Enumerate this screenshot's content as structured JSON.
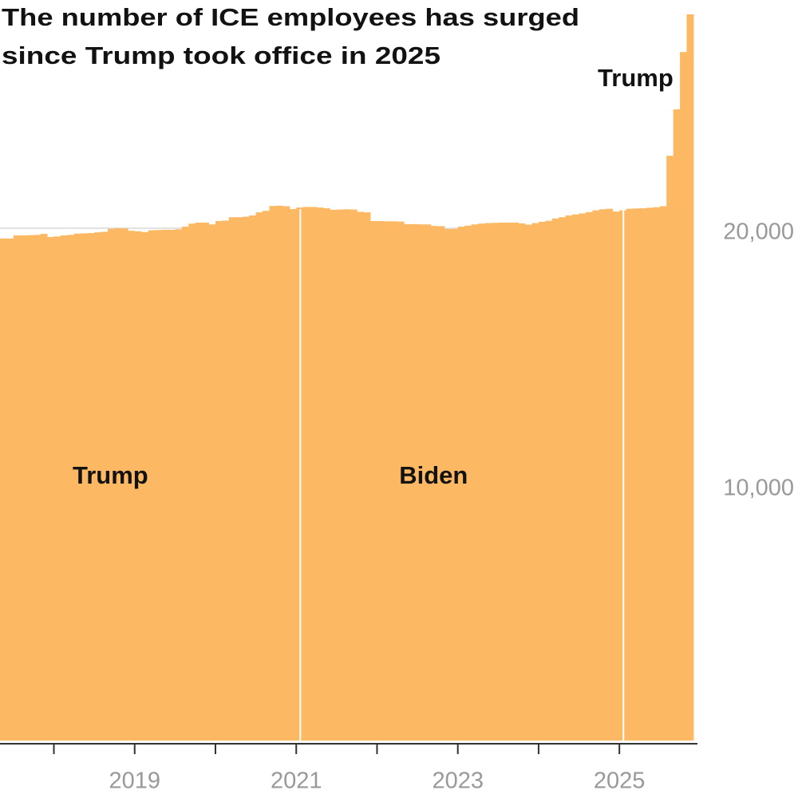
{
  "chart_data": {
    "type": "bar",
    "title": [
      "The number of ICE employees has surged",
      "since Trump took office in 2025"
    ],
    "annotations": [
      {
        "text": "Trump",
        "x": 2018.7
      },
      {
        "text": "Biden",
        "x": 2022.7
      },
      {
        "text": "Trump",
        "x": 2025.2
      }
    ],
    "dividers": [
      2021.05,
      2025.05
    ],
    "color": "#fdb863",
    "x": [
      2017.333,
      2017.417,
      2017.5,
      2017.583,
      2017.667,
      2017.75,
      2017.833,
      2017.917,
      2018,
      2018.083,
      2018.167,
      2018.25,
      2018.333,
      2018.417,
      2018.5,
      2018.583,
      2018.667,
      2018.75,
      2018.833,
      2018.917,
      2019,
      2019.083,
      2019.167,
      2019.25,
      2019.333,
      2019.417,
      2019.5,
      2019.583,
      2019.667,
      2019.75,
      2019.833,
      2019.917,
      2020,
      2020.083,
      2020.167,
      2020.25,
      2020.333,
      2020.417,
      2020.5,
      2020.583,
      2020.667,
      2020.75,
      2020.833,
      2020.917,
      2021,
      2021.083,
      2021.167,
      2021.25,
      2021.333,
      2021.417,
      2021.5,
      2021.583,
      2021.667,
      2021.75,
      2021.833,
      2021.917,
      2022,
      2022.083,
      2022.167,
      2022.25,
      2022.333,
      2022.417,
      2022.5,
      2022.583,
      2022.667,
      2022.75,
      2022.833,
      2022.917,
      2023,
      2023.083,
      2023.167,
      2023.25,
      2023.333,
      2023.417,
      2023.5,
      2023.583,
      2023.667,
      2023.75,
      2023.833,
      2023.917,
      2024,
      2024.083,
      2024.167,
      2024.25,
      2024.333,
      2024.417,
      2024.5,
      2024.583,
      2024.667,
      2024.75,
      2024.833,
      2024.917,
      2025,
      2025.083,
      2025.167,
      2025.25,
      2025.333,
      2025.417,
      2025.5,
      2025.583,
      2025.667,
      2025.75,
      2025.833
    ],
    "values": [
      19600,
      19600,
      19720,
      19720,
      19730,
      19740,
      19780,
      19660,
      19680,
      19720,
      19740,
      19790,
      19800,
      19810,
      19840,
      19860,
      19980,
      20000,
      19990,
      19900,
      19880,
      19850,
      19920,
      19930,
      19940,
      19940,
      19960,
      20060,
      20180,
      20220,
      20220,
      20150,
      20280,
      20300,
      20430,
      20430,
      20450,
      20500,
      20620,
      20680,
      20870,
      20880,
      20860,
      20750,
      20810,
      20830,
      20830,
      20810,
      20780,
      20720,
      20730,
      20740,
      20730,
      20640,
      20620,
      20280,
      20280,
      20270,
      20270,
      20260,
      20160,
      20160,
      20150,
      20150,
      20090,
      20080,
      19970,
      19980,
      20060,
      20100,
      20150,
      20180,
      20200,
      20210,
      20220,
      20220,
      20220,
      20190,
      20140,
      20200,
      20250,
      20290,
      20380,
      20430,
      20500,
      20540,
      20580,
      20630,
      20700,
      20740,
      20760,
      20650,
      20700,
      20760,
      20770,
      20780,
      20800,
      20820,
      20860,
      22830,
      24640,
      26880,
      28350
    ],
    "xlim": [
      2017.333,
      2025.917
    ],
    "xticks": [
      2019,
      2021,
      2023,
      2025
    ],
    "xminor_ticks": [
      2018,
      2020,
      2022,
      2024
    ],
    "ylim": [
      0,
      28910
    ],
    "yticks": [
      {
        "value": 10000,
        "label": "10,000"
      },
      {
        "value": 20000,
        "label": "20,000"
      }
    ],
    "grid": true
  }
}
